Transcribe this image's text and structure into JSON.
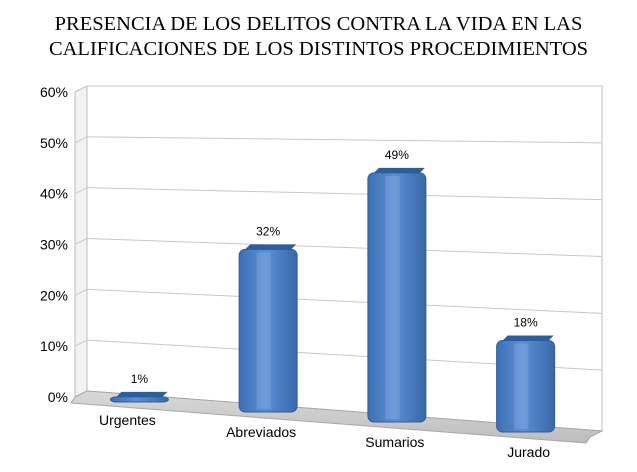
{
  "chart_data": {
    "type": "bar",
    "title_lines": [
      "PRESENCIA DE LOS DELITOS CONTRA LA VIDA EN LAS",
      "CALIFICACIONES DE LOS DISTINTOS PROCEDIMIENTOS"
    ],
    "categories": [
      "Urgentes",
      "Abreviados",
      "Sumarios",
      "Jurado"
    ],
    "values": [
      1,
      32,
      49,
      18
    ],
    "data_labels": [
      "1%",
      "32%",
      "49%",
      "18%"
    ],
    "yticks": [
      "0%",
      "10%",
      "20%",
      "30%",
      "40%",
      "50%",
      "60%"
    ],
    "ylim": [
      0,
      60
    ],
    "grid": true,
    "legend": "none",
    "bar_color": "#4a7ec4",
    "xlabel": "",
    "ylabel": ""
  }
}
